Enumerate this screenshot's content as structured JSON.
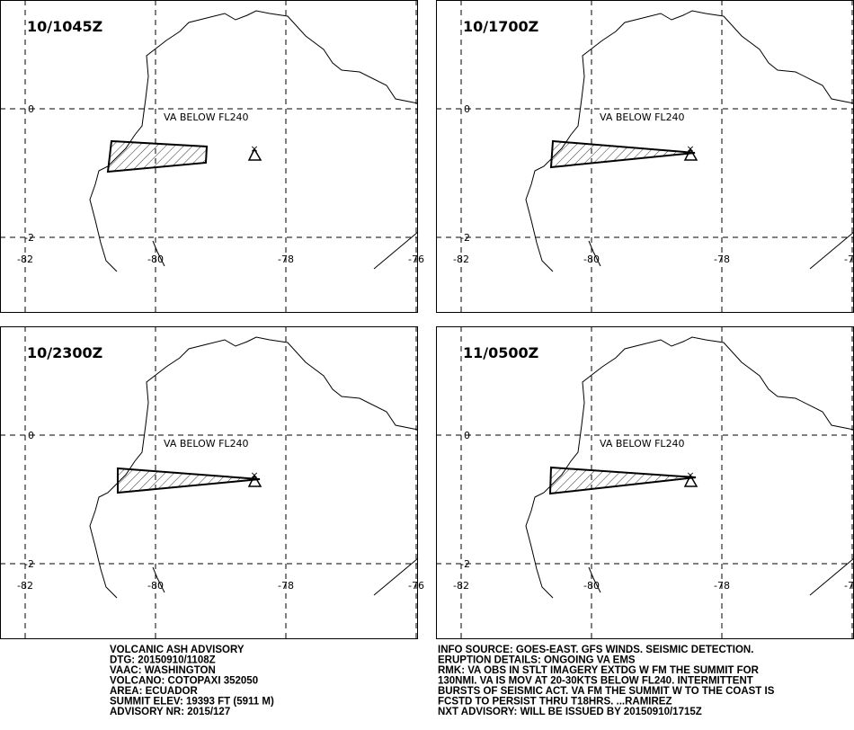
{
  "panels": [
    {
      "time": "10/1045Z",
      "label": "VA BELOW FL240"
    },
    {
      "time": "10/1700Z",
      "label": "VA BELOW FL240"
    },
    {
      "time": "10/2300Z",
      "label": "VA BELOW FL240"
    },
    {
      "time": "11/0500Z",
      "label": "VA BELOW FL240"
    }
  ],
  "lon_ticks": [
    -82,
    -80,
    -78,
    -76
  ],
  "lat_ticks": [
    0,
    -2
  ],
  "advisory": [
    "VOLCANIC ASH ADVISORY",
    "DTG: 20150910/1108Z",
    "VAAC: WASHINGTON",
    "VOLCANO: COTOPAXI 352050",
    "AREA: ECUADOR",
    "SUMMIT ELEV: 19393 FT (5911 M)",
    "ADVISORY NR: 2015/127"
  ],
  "info": [
    "INFO SOURCE: GOES-EAST. GFS WINDS. SEISMIC DETECTION.",
    "ERUPTION DETAILS: ONGOING VA EMS",
    "RMK: VA OBS IN STLT IMAGERY EXTDG W FM THE SUMMIT FOR",
    "130NMI. VA IS MOV AT 20-30KTS BELOW FL240. INTERMITTENT",
    "BURSTS OF SEISMIC ACT. VA FM THE SUMMIT W TO THE COAST IS",
    "FCSTD TO PERSIST THRU T18HRS. ...RAMIREZ",
    "NXT ADVISORY: WILL BE ISSUED BY 20150910/1715Z"
  ]
}
